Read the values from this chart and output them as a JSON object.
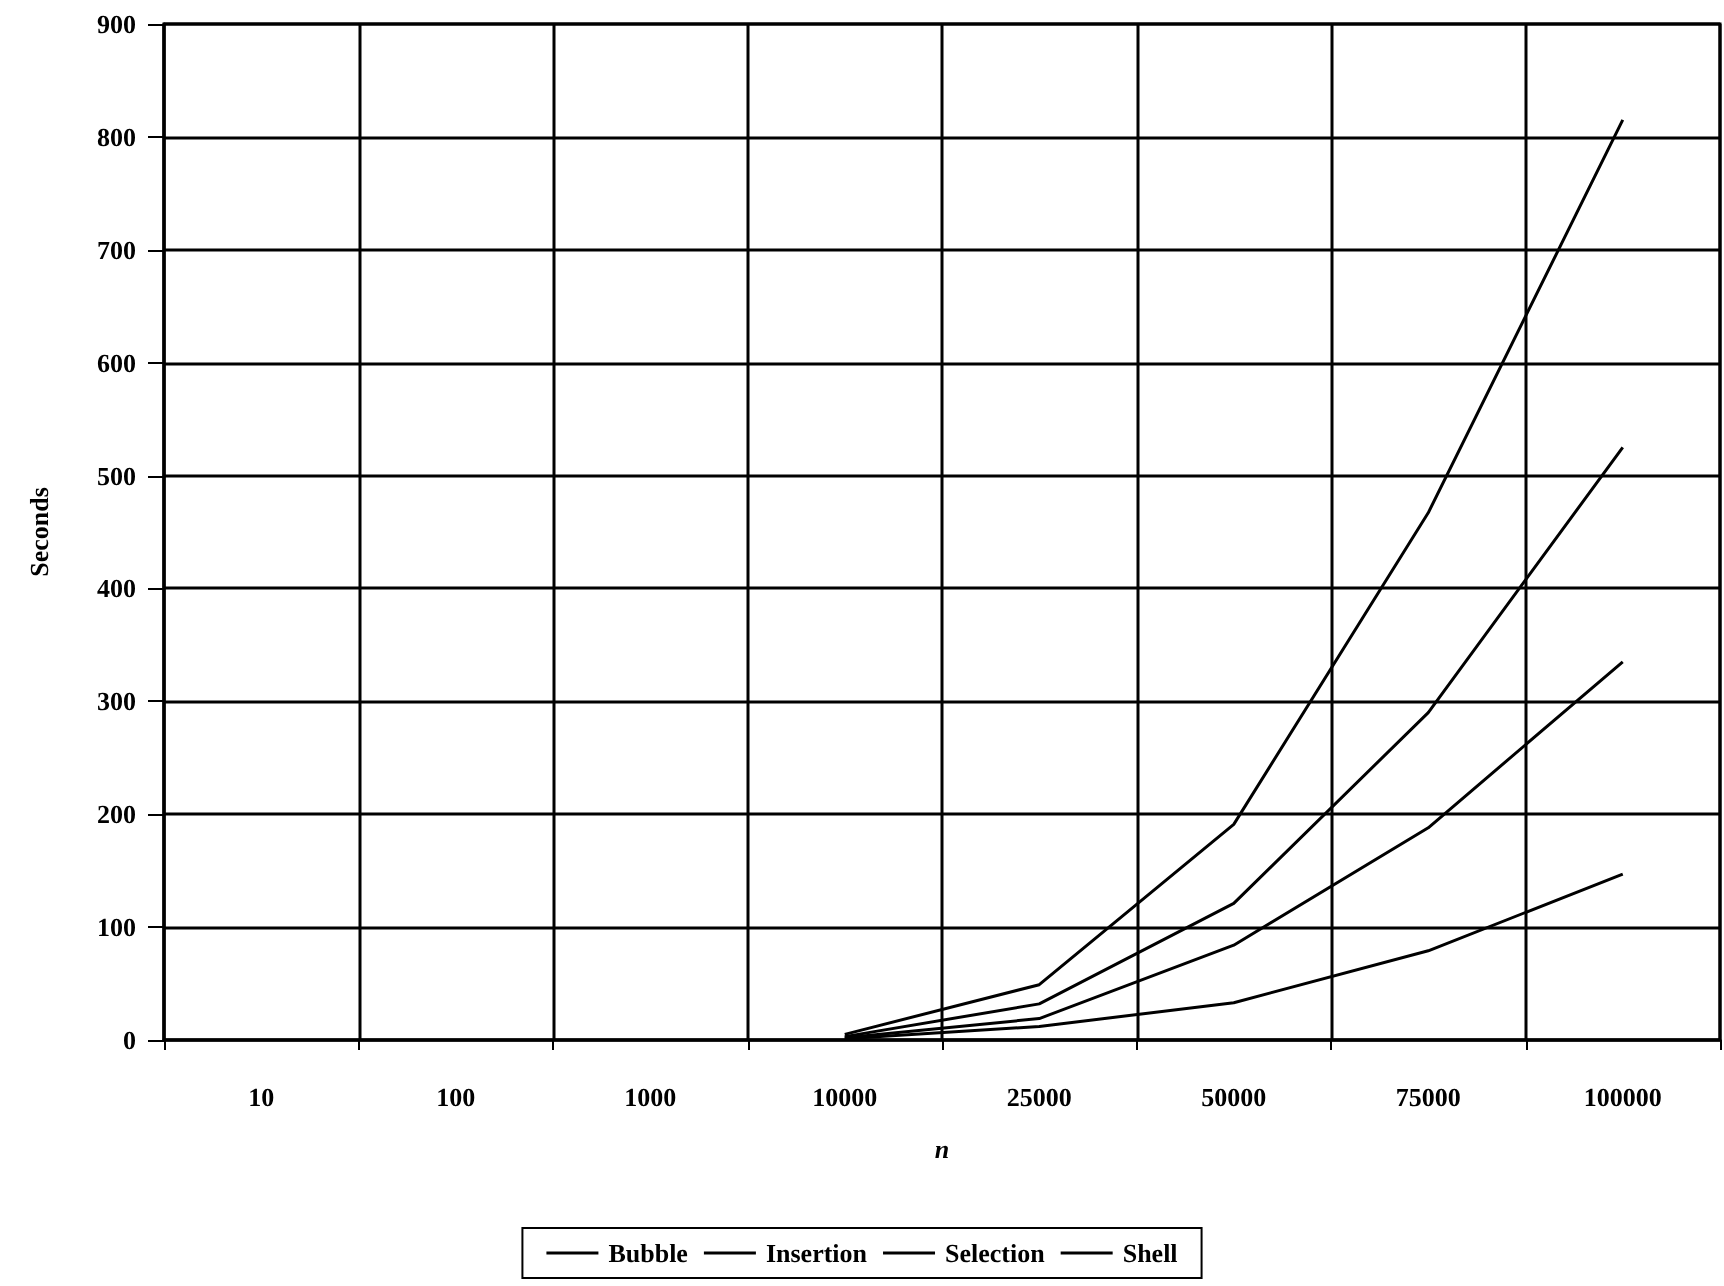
{
  "chart_data": {
    "type": "line",
    "xlabel": "n",
    "ylabel": "Seconds",
    "categories": [
      "10",
      "100",
      "1000",
      "10000",
      "25000",
      "50000",
      "75000",
      "100000"
    ],
    "series": [
      {
        "name": "Bubble",
        "color": "#000000",
        "values": [
          null,
          null,
          null,
          5,
          49,
          191,
          467,
          815
        ]
      },
      {
        "name": "Insertion",
        "color": "#000000",
        "values": [
          null,
          null,
          null,
          3,
          32,
          121,
          290,
          525
        ]
      },
      {
        "name": "Selection",
        "color": "#000000",
        "values": [
          null,
          null,
          null,
          2,
          19,
          84,
          188,
          335
        ]
      },
      {
        "name": "Shell",
        "color": "#000000",
        "values": [
          null,
          null,
          null,
          1,
          12,
          33,
          79,
          147
        ]
      }
    ],
    "ylim": [
      0,
      900
    ],
    "yticks": [
      0,
      100,
      200,
      300,
      400,
      500,
      600,
      700,
      800,
      900
    ],
    "grid": true,
    "legend": "bottom",
    "marker": "none",
    "line_style": "solid"
  }
}
